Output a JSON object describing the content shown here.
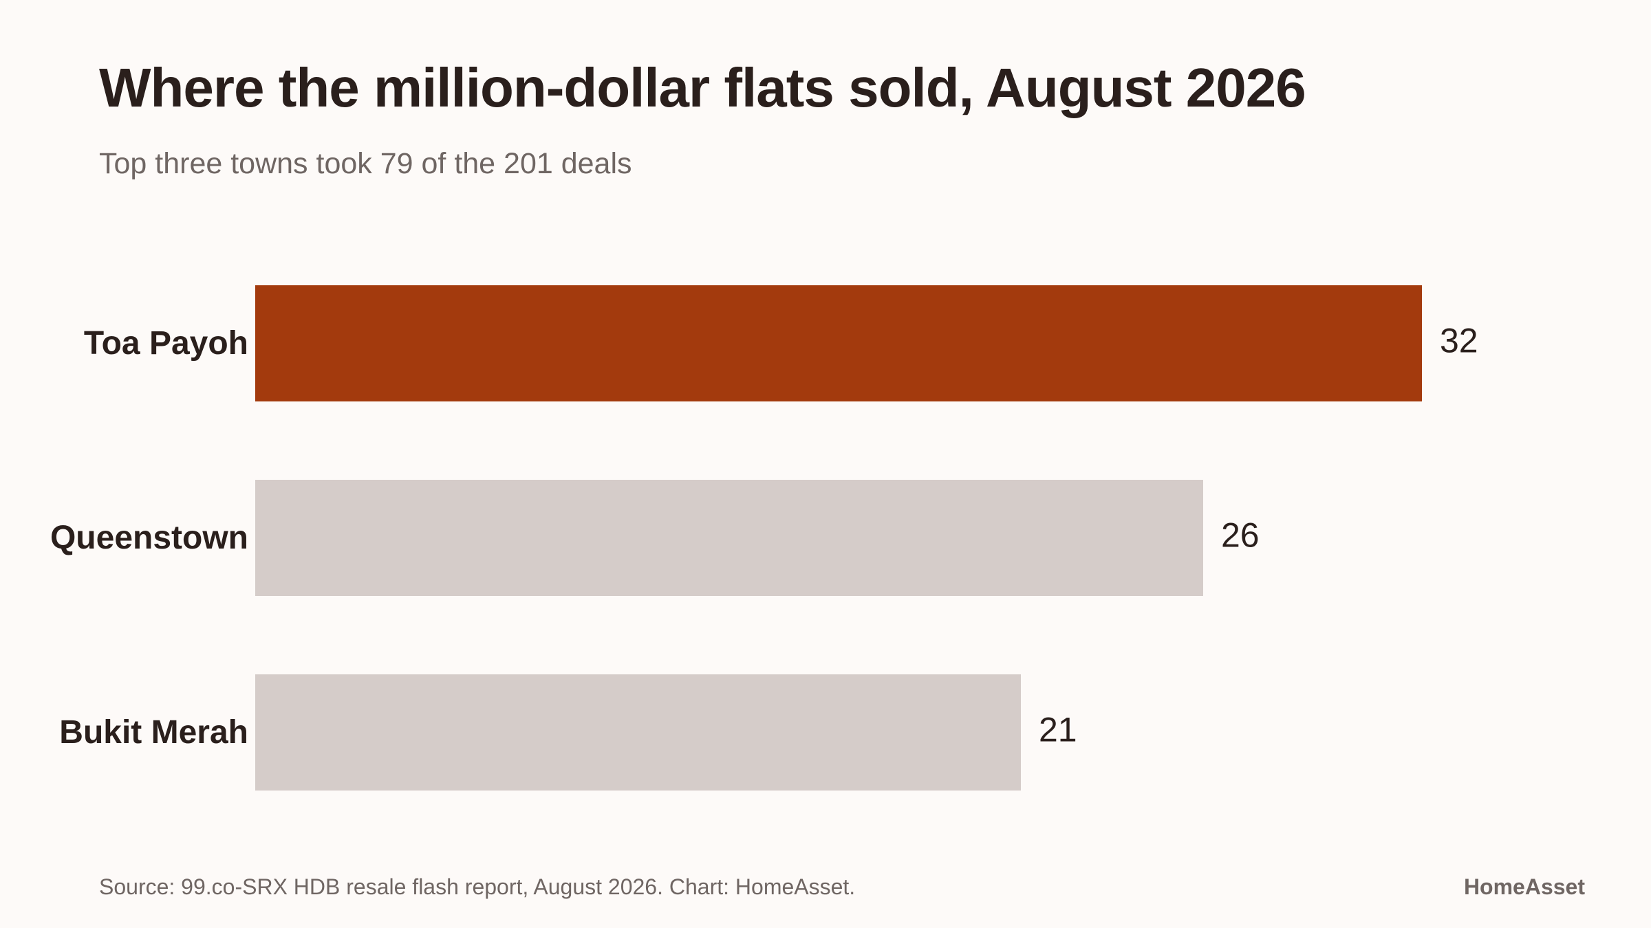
{
  "header": {
    "title": "Where the million-dollar flats sold, August 2026",
    "subtitle": "Top three towns took 79 of the 201 deals"
  },
  "footer": {
    "source": "Source: 99.co-SRX HDB resale flash report, August 2026. Chart: HomeAsset.",
    "brand": "HomeAsset"
  },
  "colors": {
    "highlight": "#a33a0d",
    "muted": "#d5ccc9",
    "label": "#2a1f1c",
    "background": "#fdfaf8"
  },
  "chart_data": {
    "type": "bar",
    "orientation": "horizontal",
    "categories": [
      "Toa Payoh",
      "Queenstown",
      "Bukit Merah"
    ],
    "values": [
      32,
      26,
      21
    ],
    "highlighted": [
      "Toa Payoh"
    ],
    "xlim": [
      0,
      32
    ],
    "grid": false,
    "legend": "none"
  }
}
